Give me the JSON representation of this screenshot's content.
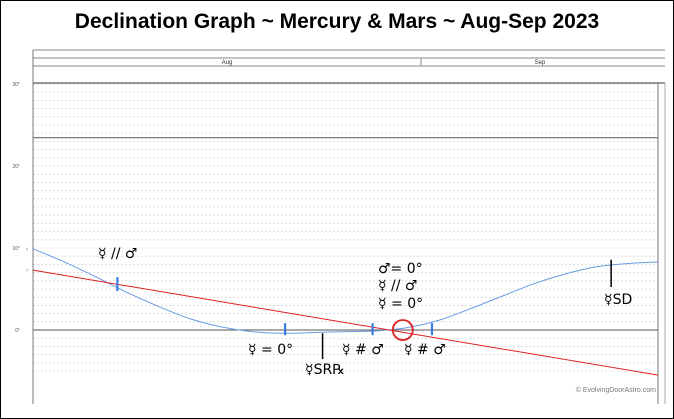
{
  "title": "Declination Graph ~ Mercury & Mars ~ Aug-Sep 2023",
  "watermark": "© EvolvingDoorAstro.com",
  "chart_data": {
    "type": "line",
    "months": [
      "Aug",
      "Sep"
    ],
    "x_unit": "days from Aug 1 2023",
    "xlim": [
      0,
      60
    ],
    "y_tick_labels": [
      "30°",
      "20°",
      "10°",
      "0°"
    ],
    "ylim": [
      -5.5,
      30
    ],
    "series": [
      {
        "symbol": "☿",
        "color": "#6a9ae6",
        "x": [
          0,
          3,
          6,
          9,
          12,
          15,
          18,
          21,
          24,
          27,
          30,
          33,
          36,
          39,
          42,
          45,
          48,
          51,
          54,
          57,
          60
        ],
        "values": [
          9.9,
          8.3,
          6.5,
          4.6,
          2.9,
          1.4,
          0.4,
          -0.2,
          -0.4,
          -0.3,
          -0.2,
          -0.1,
          0.3,
          1.2,
          2.6,
          4.1,
          5.6,
          6.8,
          7.7,
          8.1,
          8.3
        ]
      },
      {
        "symbol": "♂",
        "color": "#e02020",
        "x": [
          0,
          60
        ],
        "values": [
          7.3,
          -5.5
        ]
      }
    ],
    "events": [
      {
        "label": "☿ // ♂",
        "x": 8.1,
        "y": 5.6
      },
      {
        "label": "☿ = 0°",
        "x": 24.2,
        "y": 0.1
      },
      {
        "label": "☿SR℞",
        "x": 27.8,
        "y": -0.4
      },
      {
        "label": "☿ # ♂",
        "x": 32.6,
        "y": 0.1
      },
      {
        "label": "♂= 0°",
        "x": 35.5,
        "y": 0.0
      },
      {
        "label": "☿ // ♂",
        "x": 35.5,
        "y": 0.0
      },
      {
        "label": "☿ = 0°",
        "x": 35.5,
        "y": 0.0
      },
      {
        "label": "☿ # ♂",
        "x": 38.3,
        "y": 0.1
      },
      {
        "label": "☿SD",
        "x": 55.5,
        "y": 8.2
      }
    ]
  }
}
